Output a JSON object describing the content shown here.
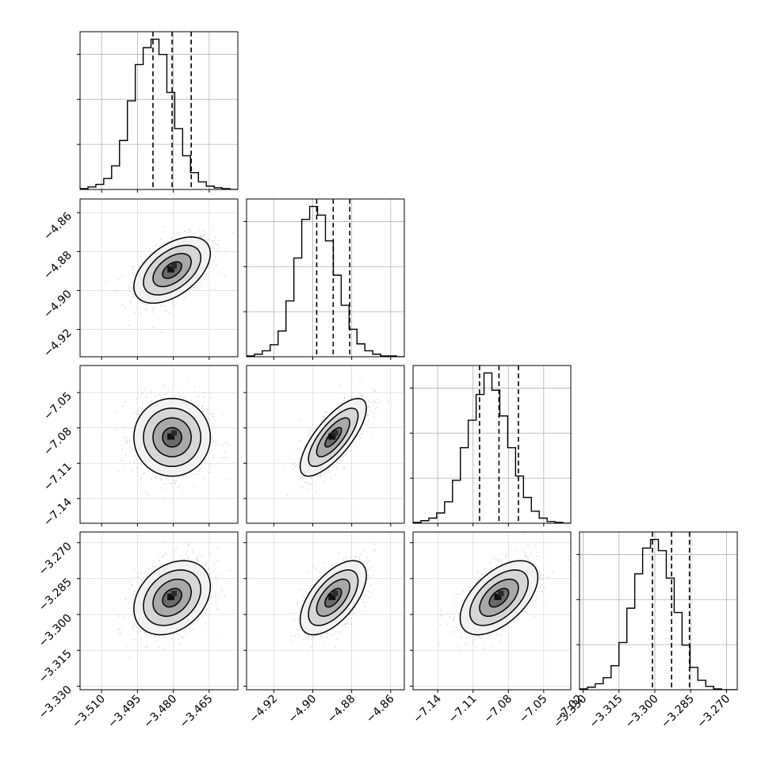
{
  "chart_data": {
    "type": "corner",
    "description_note": "",
    "parameters": [
      {
        "index": 0,
        "range": [
          -3.519,
          -3.453
        ],
        "median": -3.4805,
        "q16": -3.4885,
        "q84": -3.4725,
        "ticks": [
          -3.51,
          -3.495,
          -3.48,
          -3.465
        ],
        "tick_labels": [
          "−3.510",
          "−3.495",
          "−3.480",
          "−3.465"
        ]
      },
      {
        "index": 1,
        "range": [
          -4.934,
          -4.853
        ],
        "median": -4.8895,
        "q16": -4.898,
        "q84": -4.881,
        "ticks": [
          -4.92,
          -4.9,
          -4.88,
          -4.86
        ],
        "tick_labels": [
          "−4.92",
          "−4.90",
          "−4.88",
          "−4.86"
        ]
      },
      {
        "index": 2,
        "range": [
          -7.161,
          -7.027
        ],
        "median": -7.088,
        "q16": -7.1045,
        "q84": -7.0715,
        "ticks": [
          -7.14,
          -7.11,
          -7.08,
          -7.05,
          -7.02
        ],
        "tick_labels": [
          "−7.14",
          "−7.11",
          "−7.08",
          "−7.05",
          "−7.02"
        ]
      },
      {
        "index": 3,
        "range": [
          -3.3315,
          -3.2655
        ],
        "median": -3.293,
        "q16": -3.301,
        "q84": -3.2855,
        "ticks": [
          -3.33,
          -3.315,
          -3.3,
          -3.285,
          -3.27
        ],
        "tick_labels": [
          "−3.330",
          "−3.315",
          "−3.300",
          "−3.285",
          "−3.270"
        ]
      }
    ],
    "histograms": [
      {
        "param": 0,
        "counts": [
          1,
          3,
          6,
          13,
          28,
          58,
          105,
          148,
          168,
          178,
          160,
          115,
          72,
          40,
          20,
          9,
          4,
          2,
          1,
          0
        ]
      },
      {
        "param": 1,
        "counts": [
          1,
          3,
          7,
          14,
          30,
          65,
          115,
          160,
          175,
          165,
          135,
          95,
          60,
          32,
          15,
          7,
          3,
          1,
          1,
          0
        ]
      },
      {
        "param": 2,
        "counts": [
          1,
          3,
          6,
          12,
          25,
          50,
          88,
          120,
          150,
          175,
          155,
          125,
          88,
          55,
          30,
          14,
          6,
          2,
          1,
          0
        ]
      },
      {
        "param": 3,
        "counts": [
          1,
          3,
          7,
          14,
          28,
          55,
          95,
          135,
          165,
          175,
          162,
          130,
          90,
          52,
          26,
          11,
          4,
          1,
          0,
          0
        ]
      }
    ],
    "pair_correlations": {
      "1-0": 0.5,
      "2-0": 0.0,
      "2-1": 0.75,
      "3-0": 0.3,
      "3-1": 0.6,
      "3-2": 0.55
    },
    "contour_levels_sigma": [
      0.5,
      1.0,
      1.5,
      2.0
    ],
    "grid": true,
    "quantile_lines": "dashed"
  }
}
